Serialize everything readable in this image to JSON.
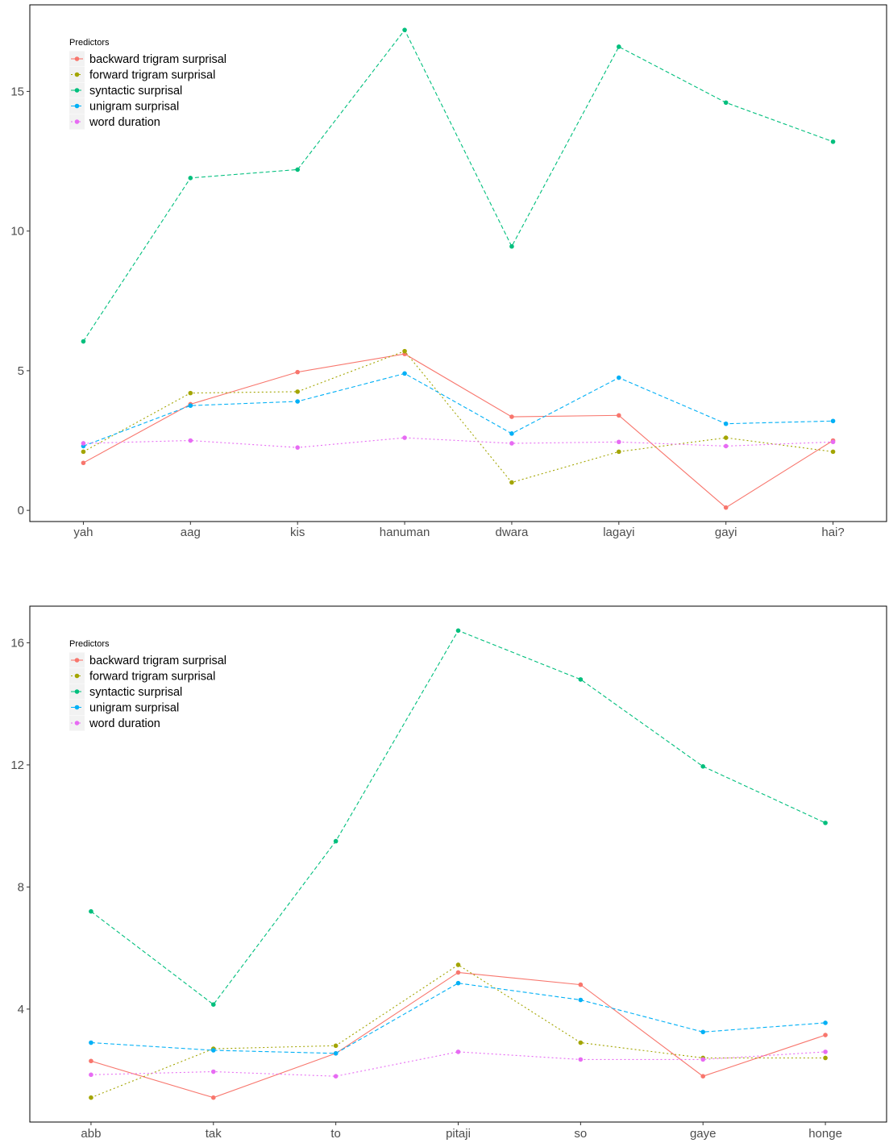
{
  "chart_data": [
    {
      "type": "line",
      "categories": [
        "yah",
        "aag",
        "kis",
        "hanuman",
        "dwara",
        "lagayi",
        "gayi",
        "hai?"
      ],
      "ylim": [
        -0.4,
        18.1
      ],
      "yticks": [
        0,
        5,
        10,
        15
      ],
      "legend_title": "Predictors",
      "legend_position": "top-left",
      "grid": false,
      "series": [
        {
          "name": "backward trigram surprisal",
          "color": "#F8766D",
          "dash": "solid",
          "values": [
            1.7,
            3.8,
            4.95,
            5.6,
            3.35,
            3.4,
            0.1,
            2.5
          ]
        },
        {
          "name": "forward trigram surprisal",
          "color": "#A3A500",
          "dash": "dotted",
          "values": [
            2.1,
            4.2,
            4.25,
            5.7,
            1.0,
            2.1,
            2.6,
            2.1
          ]
        },
        {
          "name": "syntactic surprisal",
          "color": "#00BF7D",
          "dash": "dashed",
          "values": [
            6.05,
            11.9,
            12.2,
            17.2,
            9.45,
            16.6,
            14.6,
            13.2
          ]
        },
        {
          "name": "unigram surprisal",
          "color": "#00B0F6",
          "dash": "dashed",
          "values": [
            2.3,
            3.75,
            3.9,
            4.9,
            2.75,
            4.75,
            3.1,
            3.2
          ]
        },
        {
          "name": "word duration",
          "color": "#E76BF3",
          "dash": "dotted",
          "values": [
            2.4,
            2.5,
            2.25,
            2.6,
            2.4,
            2.45,
            2.3,
            2.45
          ]
        }
      ]
    },
    {
      "type": "line",
      "categories": [
        "abb",
        "tak",
        "to",
        "pitaji",
        "so",
        "gaye",
        "honge"
      ],
      "ylim": [
        0.3,
        17.2
      ],
      "yticks": [
        4,
        8,
        12,
        16
      ],
      "legend_title": "Predictors",
      "legend_position": "top-left",
      "grid": false,
      "series": [
        {
          "name": "backward trigram surprisal",
          "color": "#F8766D",
          "dash": "solid",
          "values": [
            2.3,
            1.1,
            2.55,
            5.2,
            4.8,
            1.8,
            3.15
          ]
        },
        {
          "name": "forward trigram surprisal",
          "color": "#A3A500",
          "dash": "dotted",
          "values": [
            1.1,
            2.7,
            2.8,
            5.45,
            2.9,
            2.4,
            2.4
          ]
        },
        {
          "name": "syntactic surprisal",
          "color": "#00BF7D",
          "dash": "dashed",
          "values": [
            7.2,
            4.15,
            9.5,
            16.4,
            14.8,
            11.95,
            10.1
          ]
        },
        {
          "name": "unigram surprisal",
          "color": "#00B0F6",
          "dash": "dashed",
          "values": [
            2.9,
            2.65,
            2.55,
            4.85,
            4.3,
            3.25,
            3.55
          ]
        },
        {
          "name": "word duration",
          "color": "#E76BF3",
          "dash": "dotted",
          "values": [
            1.85,
            1.95,
            1.8,
            2.6,
            2.35,
            2.35,
            2.6
          ]
        }
      ]
    }
  ]
}
